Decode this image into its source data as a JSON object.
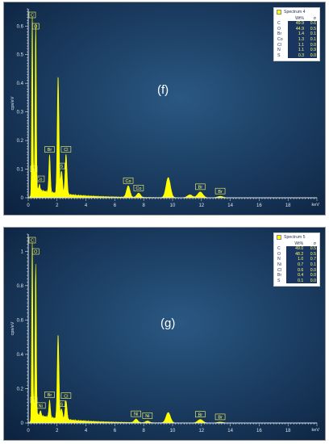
{
  "chart_data": [
    {
      "type": "line",
      "panel_label": "(f)",
      "ylabel": "cps/eV",
      "xlabel": "keV",
      "xlim": [
        0,
        20
      ],
      "ylim": [
        0,
        0.66
      ],
      "x_ticks": [
        "0",
        "2",
        "4",
        "6",
        "8",
        "10",
        "12",
        "14",
        "16",
        "18"
      ],
      "y_ticks": [
        "0",
        "0.1",
        "0.2",
        "0.3",
        "0.4",
        "0.5",
        "0.6"
      ],
      "y_tick_values": [
        0,
        0.1,
        0.2,
        0.3,
        0.4,
        0.5,
        0.6
      ],
      "legend": {
        "title": "Spectrum 4",
        "columns": [
          "",
          "Wt%",
          "σ"
        ],
        "rows": [
          [
            "C",
            "49.9",
            "0.6"
          ],
          [
            "O",
            "44.9",
            "0.5"
          ],
          [
            "Br",
            "1.4",
            "0.1"
          ],
          [
            "Co",
            "1.3",
            "0.1"
          ],
          [
            "Cl",
            "1.1",
            "0.0"
          ],
          [
            "N",
            "1.1",
            "0.9"
          ],
          [
            "S",
            "0.3",
            "0.0"
          ]
        ]
      },
      "peaks": [
        {
          "x": 0.28,
          "y": 0.62,
          "label": "C"
        },
        {
          "x": 0.52,
          "y": 0.58,
          "label": "O"
        },
        {
          "x": 0.39,
          "y": 0.05,
          "label": "N"
        },
        {
          "x": 0.78,
          "y": 0.02,
          "label": "Co"
        },
        {
          "x": 1.48,
          "y": 0.13,
          "label": "Br"
        },
        {
          "x": 2.07,
          "y": 0.41,
          "label": ""
        },
        {
          "x": 2.31,
          "y": 0.08,
          "label": "S"
        },
        {
          "x": 2.62,
          "y": 0.14,
          "label": "Cl"
        },
        {
          "x": 6.93,
          "y": 0.04,
          "label": "Co"
        },
        {
          "x": 7.65,
          "y": 0.015,
          "label": "Co"
        },
        {
          "x": 9.7,
          "y": 0.07,
          "label": ""
        },
        {
          "x": 11.2,
          "y": 0.01,
          "label": ""
        },
        {
          "x": 11.92,
          "y": 0.02,
          "label": "Br"
        },
        {
          "x": 13.3,
          "y": 0.005,
          "label": "Br"
        }
      ]
    },
    {
      "type": "line",
      "panel_label": "(g)",
      "ylabel": "cps/eV",
      "xlabel": "keV",
      "xlim": [
        0,
        20
      ],
      "ylim": [
        0,
        1.1
      ],
      "x_ticks": [
        "0",
        "2",
        "4",
        "6",
        "8",
        "10",
        "12",
        "14",
        "16",
        "18"
      ],
      "y_ticks": [
        "0",
        "0.2",
        "0.4",
        "0.6",
        "0.8",
        "1"
      ],
      "y_tick_values": [
        0,
        0.2,
        0.4,
        0.6,
        0.8,
        1.0
      ],
      "legend": {
        "title": "Spectrum 5",
        "columns": [
          "",
          "Wt%",
          "σ"
        ],
        "rows": [
          [
            "C",
            "49.0",
            "0.5"
          ],
          [
            "O",
            "48.2",
            "0.5"
          ],
          [
            "N",
            "1.0",
            "0.7"
          ],
          [
            "Ni",
            "0.7",
            "0.1"
          ],
          [
            "Cl",
            "0.6",
            "0.0"
          ],
          [
            "Br",
            "0.4",
            "0.0"
          ],
          [
            "S",
            "0.1",
            "0.0"
          ]
        ]
      },
      "peaks": [
        {
          "x": 0.28,
          "y": 1.03,
          "label": "C"
        },
        {
          "x": 0.52,
          "y": 0.88,
          "label": "O"
        },
        {
          "x": 0.39,
          "y": 0.05,
          "label": "N"
        },
        {
          "x": 0.85,
          "y": 0.03,
          "label": "Ni"
        },
        {
          "x": 1.48,
          "y": 0.1,
          "label": "Br"
        },
        {
          "x": 2.07,
          "y": 0.49,
          "label": ""
        },
        {
          "x": 2.31,
          "y": 0.06,
          "label": "S"
        },
        {
          "x": 2.62,
          "y": 0.11,
          "label": "Cl"
        },
        {
          "x": 7.47,
          "y": 0.02,
          "label": "Ni"
        },
        {
          "x": 8.26,
          "y": 0.01,
          "label": "Ni"
        },
        {
          "x": 9.7,
          "y": 0.06,
          "label": ""
        },
        {
          "x": 11.92,
          "y": 0.02,
          "label": "Br"
        },
        {
          "x": 13.3,
          "y": 0.005,
          "label": "Br"
        }
      ]
    }
  ],
  "colors": {
    "background_top": "#0d2341",
    "background_center": "#2a5883",
    "spectrum": "#ffff00",
    "axis": "#dfe6ee",
    "label_box": "#ffff66"
  }
}
